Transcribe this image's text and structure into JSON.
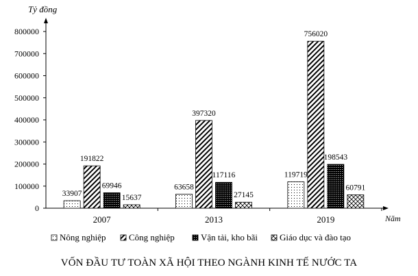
{
  "chart_data": {
    "type": "bar",
    "title": "VỐN ĐẦU TƯ TOÀN XÃ HỘI THEO NGÀNH KINH TẾ NƯỚC TA",
    "ylabel": "Tỷ đồng",
    "xlabel": "Năm",
    "ylim": [
      0,
      800000
    ],
    "yticks": [
      "0",
      "100000",
      "200000",
      "300000",
      "400000",
      "500000",
      "600000",
      "700000",
      "800000"
    ],
    "categories": [
      "2007",
      "2013",
      "2019"
    ],
    "series": [
      {
        "name": "Nông nghiệp",
        "pattern": "dots",
        "values": [
          33907,
          63658,
          119719
        ],
        "labels": [
          "33907",
          "63658",
          "119719"
        ]
      },
      {
        "name": "Công nghiệp",
        "pattern": "hatch",
        "values": [
          191822,
          397320,
          756020
        ],
        "labels": [
          "191822",
          "397320",
          "756020"
        ]
      },
      {
        "name": "Vận tải, kho bãi",
        "pattern": "dense",
        "values": [
          69946,
          117116,
          198543
        ],
        "labels": [
          "69946",
          "117116",
          "198543"
        ]
      },
      {
        "name": "Giáo dục và đào tạo",
        "pattern": "cross",
        "values": [
          15637,
          27145,
          60791
        ],
        "labels": [
          "15637",
          "27145",
          "60791"
        ]
      }
    ],
    "grid": false,
    "legend": "bottom"
  }
}
